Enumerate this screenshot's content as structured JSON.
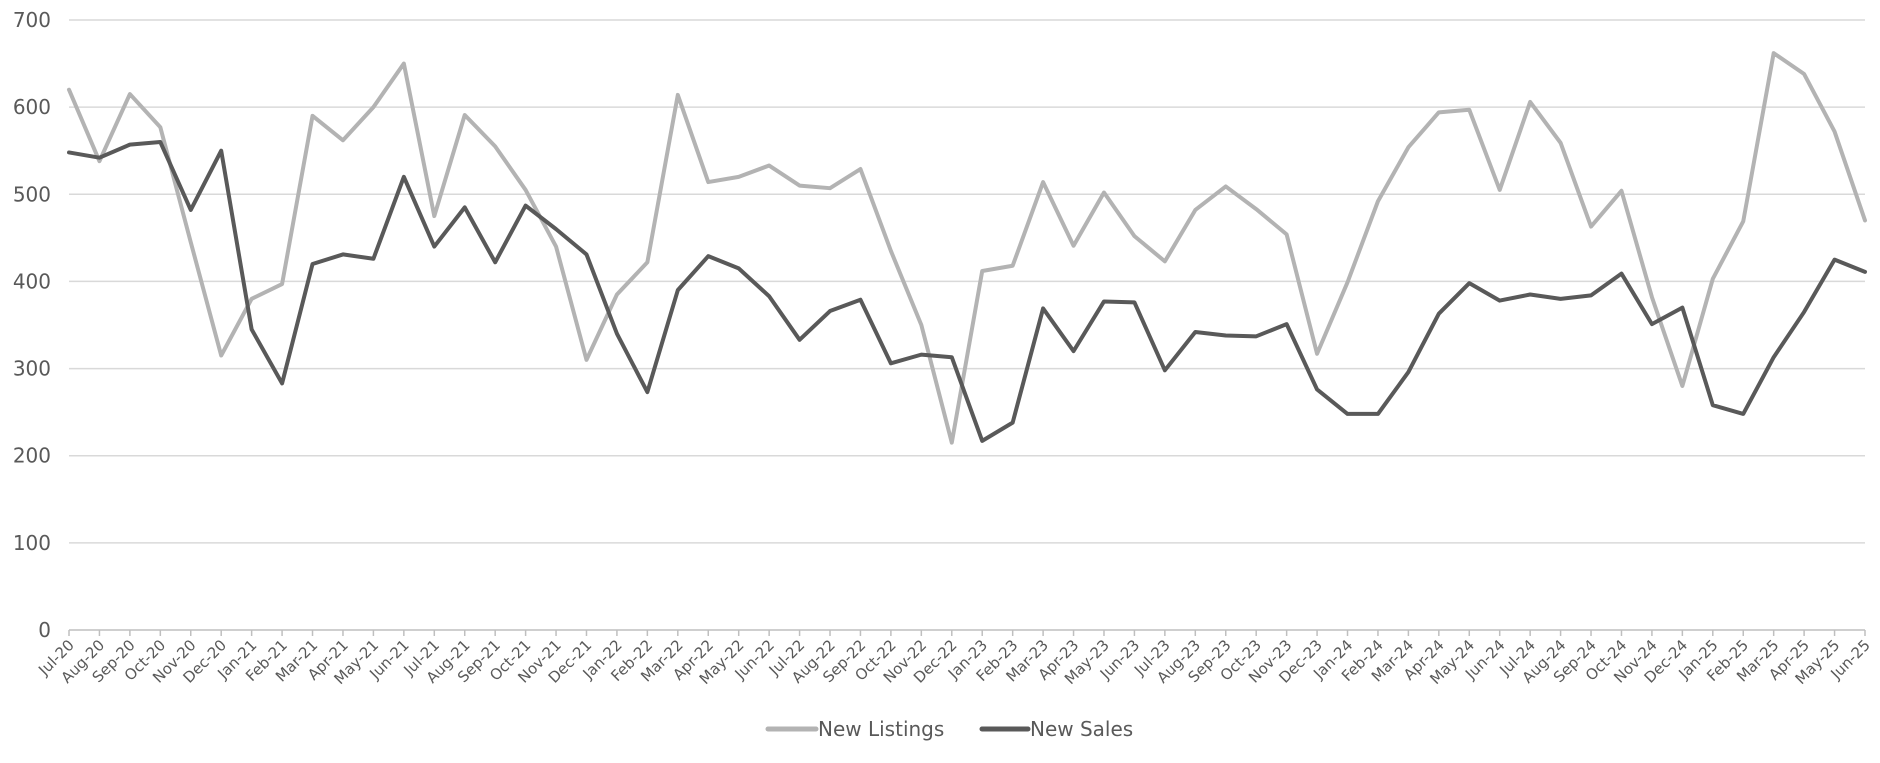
{
  "chart_data": {
    "type": "line",
    "title": "",
    "xlabel": "",
    "ylabel": "",
    "ylim": [
      0,
      700
    ],
    "yticks": [
      0,
      100,
      200,
      300,
      400,
      500,
      600,
      700
    ],
    "grid": true,
    "legend_position": "bottom-center",
    "categories": [
      "Jul-20",
      "Aug-20",
      "Sep-20",
      "Oct-20",
      "Nov-20",
      "Dec-20",
      "Jan-21",
      "Feb-21",
      "Mar-21",
      "Apr-21",
      "May-21",
      "Jun-21",
      "Jul-21",
      "Aug-21",
      "Sep-21",
      "Oct-21",
      "Nov-21",
      "Dec-21",
      "Jan-22",
      "Feb-22",
      "Mar-22",
      "Apr-22",
      "May-22",
      "Jun-22",
      "Jul-22",
      "Aug-22",
      "Sep-22",
      "Oct-22",
      "Nov-22",
      "Dec-22",
      "Jan-23",
      "Feb-23",
      "Mar-23",
      "Apr-23",
      "May-23",
      "Jun-23",
      "Jul-23",
      "Aug-23",
      "Sep-23",
      "Oct-23",
      "Nov-23",
      "Dec-23",
      "Jan-24",
      "Feb-24",
      "Mar-24",
      "Apr-24",
      "May-24",
      "Jun-24",
      "Jul-24",
      "Aug-24",
      "Sep-24",
      "Oct-24",
      "Nov-24",
      "Dec-24",
      "Jan-25",
      "Feb-25",
      "Mar-25",
      "Apr-25",
      "May-25",
      "Jun-25"
    ],
    "series": [
      {
        "name": "New Listings",
        "color": "#b3b3b3",
        "values": [
          620,
          538,
          615,
          577,
          445,
          315,
          380,
          397,
          590,
          562,
          600,
          650,
          475,
          591,
          555,
          505,
          440,
          310,
          385,
          422,
          614,
          514,
          520,
          533,
          510,
          507,
          529,
          435,
          350,
          215,
          412,
          418,
          514,
          441,
          502,
          452,
          423,
          482,
          509,
          483,
          454,
          317,
          399,
          492,
          554,
          594,
          597,
          505,
          606,
          559,
          463,
          504,
          382,
          280,
          403,
          469,
          662,
          638,
          572,
          470
        ]
      },
      {
        "name": "New Sales",
        "color": "#595959",
        "values": [
          548,
          542,
          557,
          560,
          482,
          550,
          345,
          283,
          420,
          431,
          426,
          520,
          440,
          485,
          422,
          487,
          460,
          431,
          340,
          273,
          390,
          429,
          415,
          383,
          333,
          366,
          379,
          306,
          316,
          313,
          217,
          238,
          369,
          320,
          377,
          376,
          298,
          342,
          338,
          337,
          351,
          276,
          248,
          248,
          296,
          363,
          398,
          378,
          385,
          380,
          384,
          409,
          351,
          370,
          258,
          248,
          313,
          365,
          425,
          411
        ]
      }
    ]
  }
}
